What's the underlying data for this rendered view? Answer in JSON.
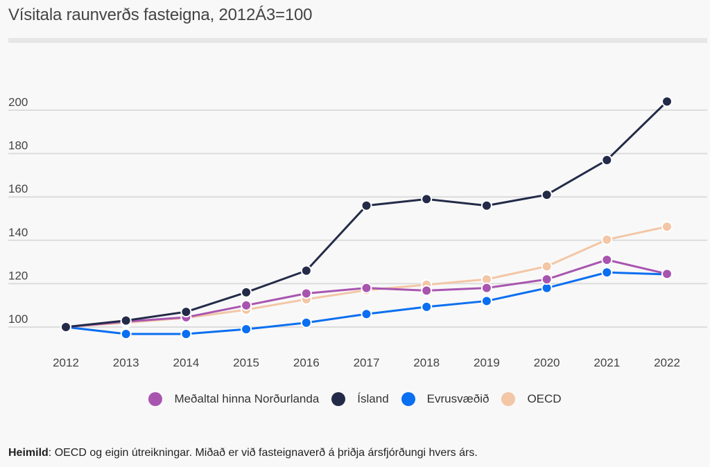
{
  "title": "Vísitala raunverðs fasteigna, 2012Á3=100",
  "source_label": "Heimild",
  "source_text": ": OECD og eigin útreikningar. Miðað er við fasteignaverð á þriðja ársfjórðungi hvers árs.",
  "chart_data": {
    "type": "line",
    "title": "Vísitala raunverðs fasteigna, 2012Á3=100",
    "xlabel": "",
    "ylabel": "",
    "x": [
      "2012",
      "2013",
      "2014",
      "2015",
      "2016",
      "2017",
      "2018",
      "2019",
      "2020",
      "2021",
      "2022"
    ],
    "yticks": [
      100,
      120,
      140,
      160,
      180,
      200
    ],
    "ylim": [
      90,
      220
    ],
    "grid": true,
    "legend_position": "bottom",
    "series": [
      {
        "name": "Meðaltal hinna Norðurlanda",
        "color": "#a855b0",
        "values": [
          100,
          102.5,
          104.5,
          110,
          115.5,
          118,
          116.8,
          118,
          122,
          131,
          124.5
        ]
      },
      {
        "name": "Ísland",
        "color": "#232b48",
        "values": [
          100,
          103,
          107,
          116,
          126,
          156,
          159,
          156,
          161,
          177,
          204
        ]
      },
      {
        "name": "Evrusvæðið",
        "color": "#0a6ff0",
        "values": [
          100,
          96.8,
          96.8,
          99,
          102,
          106,
          109.3,
          112,
          118,
          125.2,
          124.3
        ]
      },
      {
        "name": "OECD",
        "color": "#f3c6a5",
        "values": [
          100,
          102,
          104.2,
          108,
          112.8,
          117,
          119.5,
          122,
          128,
          140.3,
          146.3
        ]
      }
    ]
  }
}
